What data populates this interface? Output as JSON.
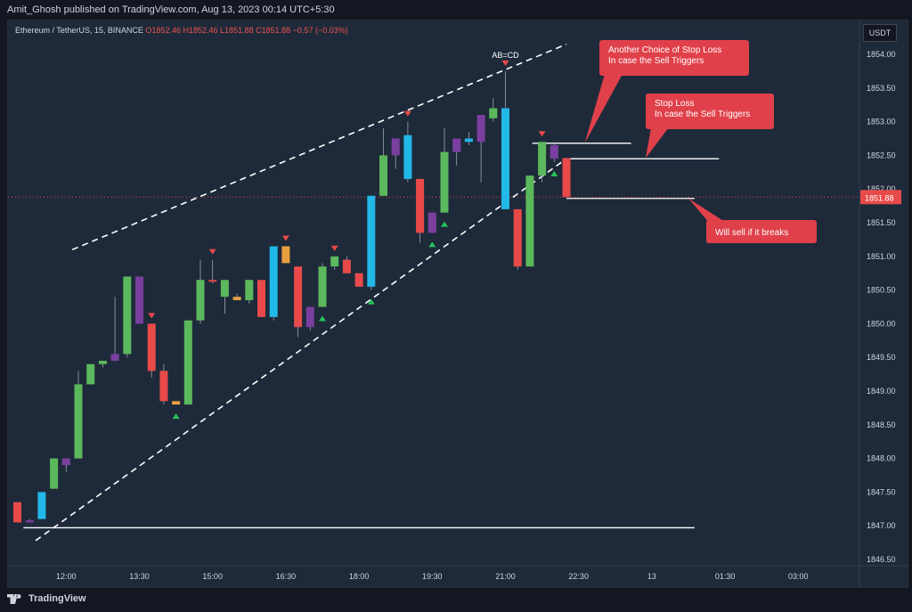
{
  "publish_line": "Amit_Ghosh published on TradingView.com, Aug 13, 2023 00:14 UTC+5:30",
  "legend": {
    "symbol": "Ethereum / TetherUS, 15, BINANCE",
    "o": "O1852.46",
    "h": "H1852.46",
    "l": "L1851.88",
    "c": "C1851.88",
    "chg": "−0.57 (−0.03%)"
  },
  "currency_button": "USDT",
  "last_price_label": "1851.88",
  "footer_brand": "TradingView",
  "colors": {
    "up": "#5cb85c",
    "down": "#e84a4a",
    "cyan": "#22b8e8",
    "purple": "#7b3fa0",
    "orange": "#e8a040",
    "callout": "#e0404a"
  },
  "chart_data": {
    "type": "candlestick",
    "y_ticks": [
      "1854.00",
      "1853.50",
      "1853.00",
      "1852.50",
      "1852.00",
      "1851.50",
      "1851.00",
      "1850.50",
      "1850.00",
      "1849.50",
      "1849.00",
      "1848.50",
      "1848.00",
      "1847.50",
      "1847.00",
      "1846.50"
    ],
    "ylim": [
      1846.35,
      1854.3
    ],
    "x_ticks": [
      {
        "label": "12:00",
        "i": 4
      },
      {
        "label": "13:30",
        "i": 10
      },
      {
        "label": "15:00",
        "i": 16
      },
      {
        "label": "16:30",
        "i": 22
      },
      {
        "label": "18:00",
        "i": 28
      },
      {
        "label": "19:30",
        "i": 34
      },
      {
        "label": "21:00",
        "i": 40
      },
      {
        "label": "22:30",
        "i": 46
      },
      {
        "label": "13",
        "i": 52
      },
      {
        "label": "01:30",
        "i": 58
      },
      {
        "label": "03:00",
        "i": 64
      }
    ],
    "candles": [
      {
        "o": 1847.35,
        "h": 1847.35,
        "l": 1847.05,
        "c": 1847.05,
        "col": "down"
      },
      {
        "o": 1847.05,
        "h": 1847.1,
        "l": 1847.05,
        "c": 1847.08,
        "col": "purple"
      },
      {
        "o": 1847.1,
        "h": 1847.5,
        "l": 1847.1,
        "c": 1847.5,
        "col": "cyan"
      },
      {
        "o": 1847.55,
        "h": 1848.0,
        "l": 1847.55,
        "c": 1848.0,
        "col": "up"
      },
      {
        "o": 1847.9,
        "h": 1848.0,
        "l": 1847.8,
        "c": 1848.0,
        "col": "purple"
      },
      {
        "o": 1848.0,
        "h": 1849.3,
        "l": 1848.0,
        "c": 1849.1,
        "col": "up"
      },
      {
        "o": 1849.1,
        "h": 1849.4,
        "l": 1849.1,
        "c": 1849.4,
        "col": "up"
      },
      {
        "o": 1849.4,
        "h": 1849.45,
        "l": 1849.35,
        "c": 1849.45,
        "col": "up"
      },
      {
        "o": 1849.45,
        "h": 1850.4,
        "l": 1849.45,
        "c": 1849.55,
        "col": "purple"
      },
      {
        "o": 1849.55,
        "h": 1850.7,
        "l": 1849.5,
        "c": 1850.7,
        "col": "up"
      },
      {
        "o": 1850.7,
        "h": 1850.7,
        "l": 1850.0,
        "c": 1850.0,
        "col": "purple"
      },
      {
        "o": 1850.0,
        "h": 1850.0,
        "l": 1849.2,
        "c": 1849.3,
        "col": "down"
      },
      {
        "o": 1849.3,
        "h": 1849.4,
        "l": 1848.8,
        "c": 1848.85,
        "col": "down"
      },
      {
        "o": 1848.85,
        "h": 1848.85,
        "l": 1848.8,
        "c": 1848.8,
        "col": "orange"
      },
      {
        "o": 1848.8,
        "h": 1850.05,
        "l": 1848.8,
        "c": 1850.05,
        "col": "up"
      },
      {
        "o": 1850.05,
        "h": 1850.95,
        "l": 1850.0,
        "c": 1850.65,
        "col": "up"
      },
      {
        "o": 1850.65,
        "h": 1850.95,
        "l": 1850.6,
        "c": 1850.65,
        "col": "down"
      },
      {
        "o": 1850.65,
        "h": 1850.65,
        "l": 1850.15,
        "c": 1850.4,
        "col": "up"
      },
      {
        "o": 1850.4,
        "h": 1850.45,
        "l": 1850.35,
        "c": 1850.35,
        "col": "orange"
      },
      {
        "o": 1850.35,
        "h": 1850.65,
        "l": 1850.3,
        "c": 1850.65,
        "col": "up"
      },
      {
        "o": 1850.65,
        "h": 1850.65,
        "l": 1850.1,
        "c": 1850.1,
        "col": "down"
      },
      {
        "o": 1850.1,
        "h": 1851.15,
        "l": 1850.05,
        "c": 1851.15,
        "col": "cyan"
      },
      {
        "o": 1851.15,
        "h": 1851.15,
        "l": 1850.9,
        "c": 1850.9,
        "col": "orange"
      },
      {
        "o": 1850.85,
        "h": 1850.85,
        "l": 1849.8,
        "c": 1849.95,
        "col": "down"
      },
      {
        "o": 1849.95,
        "h": 1850.25,
        "l": 1849.9,
        "c": 1850.25,
        "col": "purple"
      },
      {
        "o": 1850.25,
        "h": 1850.9,
        "l": 1850.25,
        "c": 1850.85,
        "col": "up"
      },
      {
        "o": 1850.85,
        "h": 1851.0,
        "l": 1850.8,
        "c": 1851.0,
        "col": "up"
      },
      {
        "o": 1850.95,
        "h": 1851.0,
        "l": 1850.75,
        "c": 1850.75,
        "col": "down"
      },
      {
        "o": 1850.75,
        "h": 1850.75,
        "l": 1850.55,
        "c": 1850.55,
        "col": "down"
      },
      {
        "o": 1850.55,
        "h": 1851.9,
        "l": 1850.5,
        "c": 1851.9,
        "col": "cyan"
      },
      {
        "o": 1851.9,
        "h": 1852.9,
        "l": 1851.9,
        "c": 1852.5,
        "col": "up"
      },
      {
        "o": 1852.5,
        "h": 1852.7,
        "l": 1852.3,
        "c": 1852.75,
        "col": "purple"
      },
      {
        "o": 1852.8,
        "h": 1853.0,
        "l": 1852.1,
        "c": 1852.15,
        "col": "cyan"
      },
      {
        "o": 1852.15,
        "h": 1852.15,
        "l": 1851.2,
        "c": 1851.35,
        "col": "down"
      },
      {
        "o": 1851.35,
        "h": 1851.65,
        "l": 1851.35,
        "c": 1851.65,
        "col": "purple"
      },
      {
        "o": 1851.65,
        "h": 1852.9,
        "l": 1851.65,
        "c": 1852.55,
        "col": "up"
      },
      {
        "o": 1852.55,
        "h": 1852.75,
        "l": 1852.35,
        "c": 1852.75,
        "col": "purple"
      },
      {
        "o": 1852.7,
        "h": 1852.85,
        "l": 1852.65,
        "c": 1852.75,
        "col": "cyan"
      },
      {
        "o": 1852.7,
        "h": 1853.1,
        "l": 1852.1,
        "c": 1853.1,
        "col": "purple"
      },
      {
        "o": 1853.05,
        "h": 1853.35,
        "l": 1853.0,
        "c": 1853.2,
        "col": "up"
      },
      {
        "o": 1853.2,
        "h": 1853.75,
        "l": 1851.7,
        "c": 1851.7,
        "col": "cyan"
      },
      {
        "o": 1851.7,
        "h": 1851.7,
        "l": 1850.8,
        "c": 1850.85,
        "col": "down"
      },
      {
        "o": 1850.85,
        "h": 1852.2,
        "l": 1850.85,
        "c": 1852.2,
        "col": "up"
      },
      {
        "o": 1852.2,
        "h": 1852.7,
        "l": 1852.1,
        "c": 1852.7,
        "col": "up"
      },
      {
        "o": 1852.65,
        "h": 1852.7,
        "l": 1852.4,
        "c": 1852.45,
        "col": "purple"
      },
      {
        "o": 1852.46,
        "h": 1852.46,
        "l": 1851.88,
        "c": 1851.88,
        "col": "down"
      }
    ],
    "bull_markers": [
      13,
      25,
      29,
      34,
      35,
      44
    ],
    "bear_markers": [
      11,
      16,
      22,
      26,
      32,
      40,
      43
    ],
    "annotations": {
      "abcd_label": "AB=CD",
      "callout_1": [
        "Another Choice of Stop Loss",
        "In case the Sell Triggers"
      ],
      "callout_2": [
        "Stop Loss",
        "In case the Sell Triggers"
      ],
      "callout_3": [
        "Will sell if it breaks"
      ],
      "support_level": 1846.97,
      "level_1": 1852.68,
      "level_2": 1852.45,
      "level_3": 1851.86
    }
  }
}
